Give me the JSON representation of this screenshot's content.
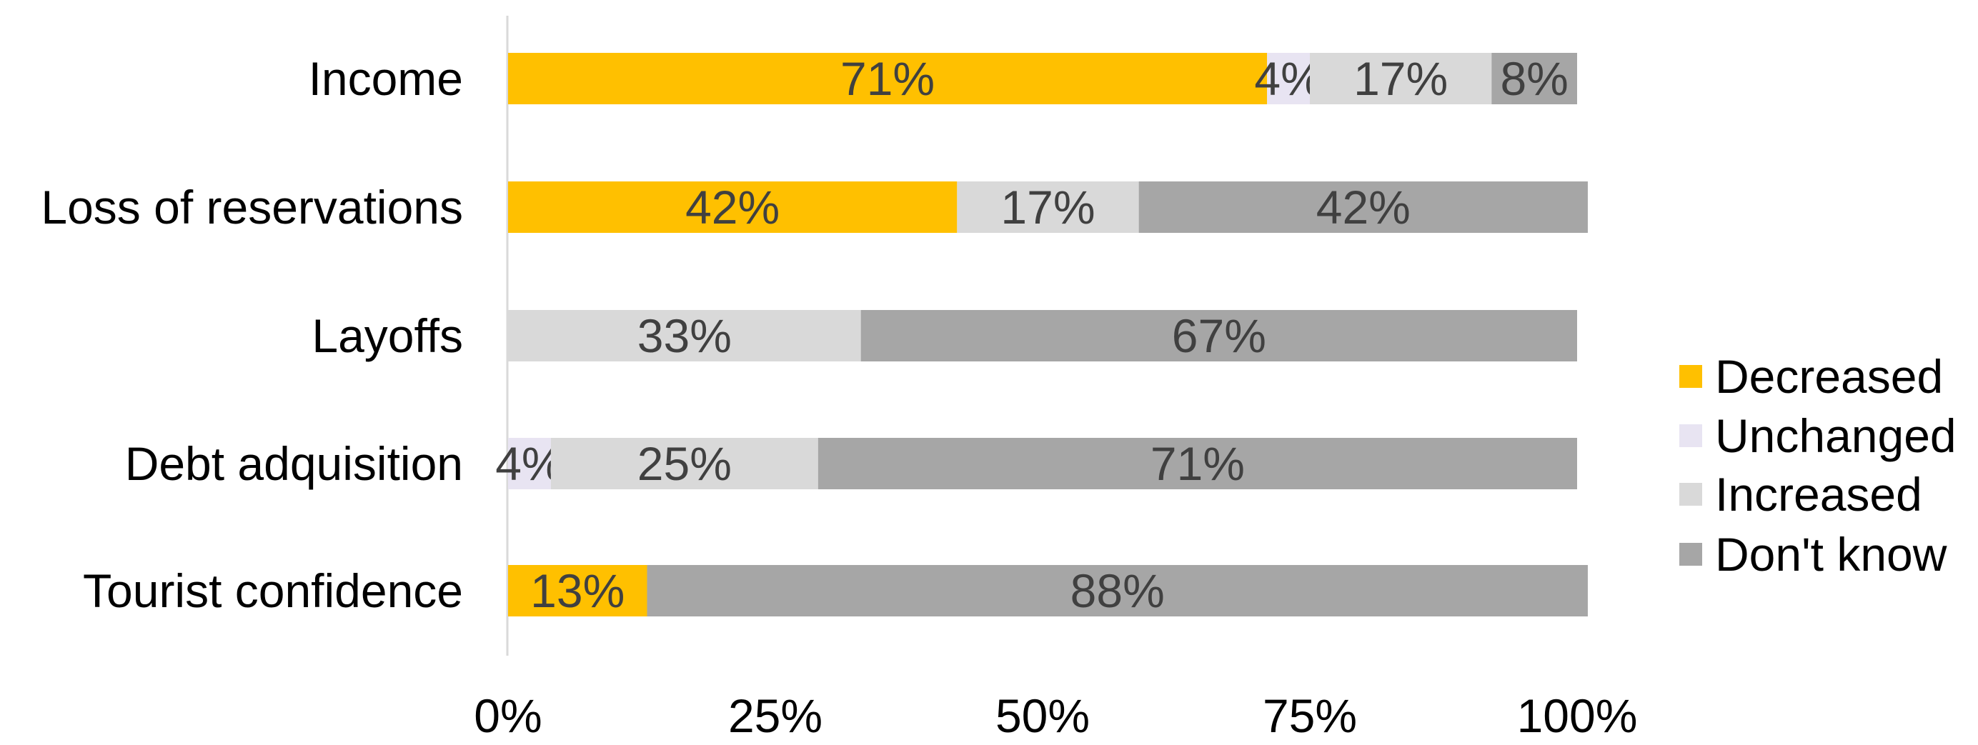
{
  "chart_data": {
    "type": "bar",
    "orientation": "horizontal",
    "stacked": true,
    "categories": [
      "Income",
      "Loss of reservations",
      "Layoffs",
      "Debt adquisition",
      "Tourist confidence"
    ],
    "series": [
      {
        "name": "Decreased",
        "color": "#FFC000",
        "values": [
          71,
          42,
          0,
          0,
          13
        ],
        "labels": [
          "71%",
          "42%",
          "",
          "",
          "13%"
        ]
      },
      {
        "name": "Unchanged",
        "color": "#E8E4F2",
        "values": [
          4,
          0,
          0,
          4,
          0
        ],
        "labels": [
          "4%",
          "",
          "",
          "4%",
          ""
        ]
      },
      {
        "name": "Increased",
        "color": "#D9D9D9",
        "values": [
          17,
          17,
          33,
          25,
          0
        ],
        "labels": [
          "17%",
          "17%",
          "33%",
          "25%",
          ""
        ]
      },
      {
        "name": "Don't know",
        "color": "#A6A6A6",
        "values": [
          8,
          42,
          67,
          71,
          88
        ],
        "labels": [
          "8%",
          "42%",
          "67%",
          "71%",
          "88%"
        ]
      }
    ],
    "x_ticks": [
      "0%",
      "25%",
      "50%",
      "75%",
      "100%"
    ],
    "xlim": [
      0,
      100
    ],
    "grid": false,
    "legend_position": "right"
  }
}
